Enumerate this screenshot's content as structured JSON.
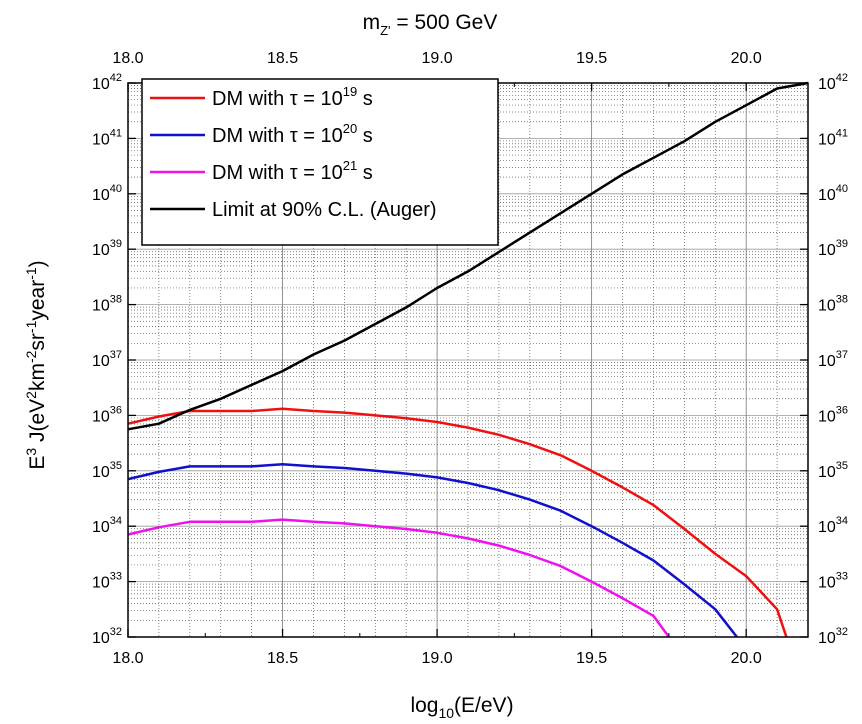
{
  "chart_data": {
    "type": "line",
    "title": {
      "main": "m",
      "sub": "Z'",
      "rest": " = 500 GeV"
    },
    "xlabel": {
      "pre": "log",
      "sub": "10",
      "post": "(E/eV)"
    },
    "ylabel": {
      "parts": [
        {
          "t": "E"
        },
        {
          "t": "3",
          "s": "sup"
        },
        {
          "t": " J(eV"
        },
        {
          "t": "2",
          "s": "sup"
        },
        {
          "t": "km"
        },
        {
          "t": "-2",
          "s": "sup"
        },
        {
          "t": "sr"
        },
        {
          "t": "-1",
          "s": "sup"
        },
        {
          "t": "year"
        },
        {
          "t": "-1",
          "s": "sup"
        },
        {
          "t": ")"
        }
      ]
    },
    "xlim": [
      18.0,
      20.2
    ],
    "ylog_lim": [
      32,
      42
    ],
    "yscale": "log",
    "grid": true,
    "legend_position": "top-left",
    "xticks": [
      "18.0",
      "18.5",
      "19.0",
      "19.5",
      "20.0"
    ],
    "ytick_base": "10",
    "ytick_exponents": [
      "32",
      "33",
      "34",
      "35",
      "36",
      "37",
      "38",
      "39",
      "40",
      "41",
      "42"
    ],
    "x": [
      18.0,
      18.1,
      18.2,
      18.3,
      18.4,
      18.5,
      18.6,
      18.7,
      18.8,
      18.9,
      19.0,
      19.1,
      19.2,
      19.3,
      19.4,
      19.5,
      19.6,
      19.7,
      19.8,
      19.9,
      20.0,
      20.1
    ],
    "series": [
      {
        "name": {
          "pre": "DM with τ = 10",
          "exp": "19",
          "post": " s"
        },
        "color": "#ee1111",
        "log10_values": [
          35.85,
          35.98,
          36.08,
          36.08,
          36.08,
          36.12,
          36.08,
          36.05,
          36.0,
          35.95,
          35.88,
          35.78,
          35.65,
          35.48,
          35.28,
          35.0,
          34.7,
          34.38,
          33.95,
          33.5,
          33.1,
          32.5
        ],
        "values_end": [
          20.13,
          32.0
        ]
      },
      {
        "name": {
          "pre": "DM with τ = 10",
          "exp": "20",
          "post": " s"
        },
        "color": "#1111cc",
        "log10_values": [
          34.85,
          34.98,
          35.08,
          35.08,
          35.08,
          35.12,
          35.08,
          35.05,
          35.0,
          34.95,
          34.88,
          34.78,
          34.65,
          34.48,
          34.28,
          34.0,
          33.7,
          33.38,
          32.95,
          32.5
        ],
        "values_end": [
          19.97,
          32.0
        ]
      },
      {
        "name": {
          "pre": "DM with τ = 10",
          "exp": "21",
          "post": " s"
        },
        "color": "#ee11ee",
        "log10_values": [
          33.85,
          33.98,
          34.08,
          34.08,
          34.08,
          34.12,
          34.08,
          34.05,
          34.0,
          33.95,
          33.88,
          33.78,
          33.65,
          33.48,
          33.28,
          33.0,
          32.7,
          32.38
        ],
        "values_end": [
          19.75,
          32.0
        ]
      },
      {
        "name": {
          "text": "Limit at 90% C.L. (Auger)"
        },
        "color": "#000000",
        "log10_values": [
          35.75,
          35.85,
          36.1,
          36.3,
          36.55,
          36.8,
          37.1,
          37.35,
          37.65,
          37.95,
          38.3,
          38.6,
          38.95,
          39.3,
          39.65,
          40.0,
          40.35,
          40.65,
          40.95,
          41.3,
          41.6,
          41.9
        ],
        "values_end": [
          20.2,
          42.0
        ]
      }
    ]
  }
}
